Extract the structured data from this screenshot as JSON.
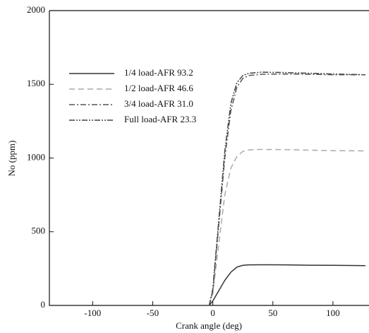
{
  "chart_data": {
    "type": "line",
    "xlabel": "Crank angle (deg)",
    "ylabel": "No (ppm)",
    "x": [
      -3,
      0,
      5,
      10,
      15,
      20,
      25,
      30,
      40,
      60,
      80,
      100,
      127
    ],
    "series": [
      {
        "name": "1/4 load-AFR 93.2",
        "color": "#333333",
        "dash": "none",
        "values": [
          0,
          30,
          100,
          170,
          225,
          260,
          272,
          275,
          276,
          275,
          273,
          272,
          270
        ]
      },
      {
        "name": "1/2 load-AFR 46.6",
        "color": "#aaaaaa",
        "dash": "8 5",
        "values": [
          0,
          80,
          420,
          750,
          930,
          1010,
          1045,
          1055,
          1058,
          1057,
          1053,
          1050,
          1048
        ]
      },
      {
        "name": "3/4 load-AFR 31.0",
        "color": "#555555",
        "dash": "8 3 2 3",
        "values": [
          0,
          100,
          550,
          1000,
          1320,
          1480,
          1540,
          1560,
          1568,
          1570,
          1568,
          1565,
          1565
        ]
      },
      {
        "name": "Full load-AFR 23.3",
        "color": "#444444",
        "dash": "8 2 2 2 2 2",
        "values": [
          0,
          110,
          580,
          1050,
          1370,
          1510,
          1560,
          1575,
          1582,
          1580,
          1575,
          1570,
          1565
        ]
      }
    ],
    "xlim": [
      -136,
      130
    ],
    "ylim": [
      0,
      2000
    ],
    "xticks": [
      -100,
      -50,
      0,
      50,
      100
    ],
    "yticks": [
      0,
      500,
      1000,
      1500,
      2000
    ],
    "legend": "upper-left"
  }
}
